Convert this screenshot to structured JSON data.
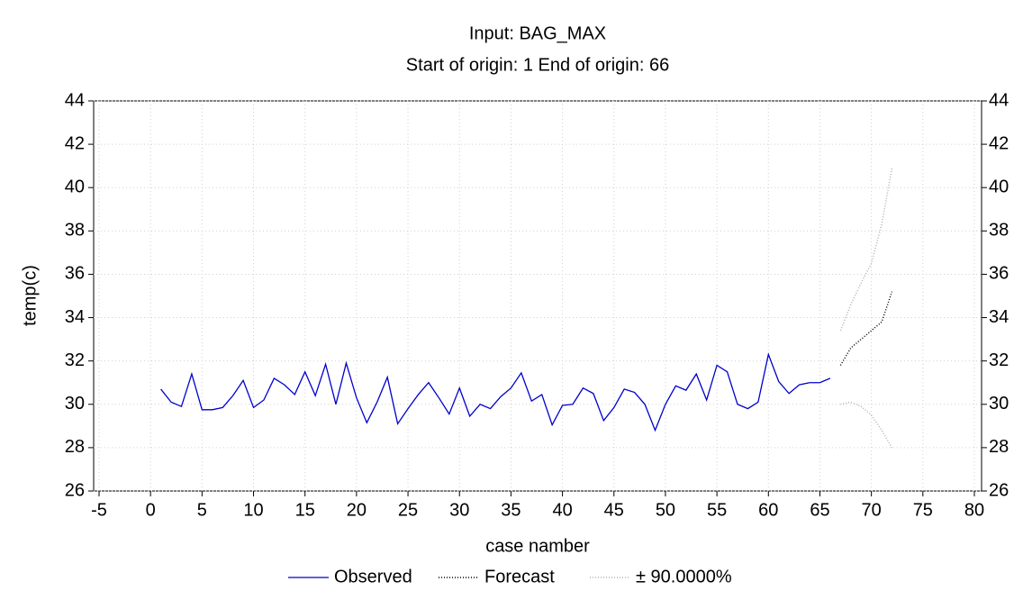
{
  "chart_data": {
    "type": "line",
    "title": "Input: BAG_MAX",
    "subtitle": "Start of origin: 1 End of origin: 66",
    "x_label": "case namber",
    "y_label": "temp(c)",
    "xlim": [
      -5,
      80
    ],
    "xticks": [
      -5,
      0,
      5,
      10,
      15,
      20,
      25,
      30,
      35,
      40,
      45,
      50,
      55,
      60,
      65,
      70,
      75,
      80
    ],
    "ylim": [
      26,
      44
    ],
    "yticks": [
      26,
      28,
      30,
      32,
      34,
      36,
      38,
      40,
      42,
      44
    ],
    "grid": true,
    "legend": "bottom",
    "series": [
      {
        "name": "Observed",
        "color": "#0000cc",
        "style": "solid",
        "x": [
          1,
          2,
          3,
          4,
          5,
          6,
          7,
          8,
          9,
          10,
          11,
          12,
          13,
          14,
          15,
          16,
          17,
          18,
          19,
          20,
          21,
          22,
          23,
          24,
          25,
          26,
          27,
          28,
          29,
          30,
          31,
          32,
          33,
          34,
          35,
          36,
          37,
          38,
          39,
          40,
          41,
          42,
          43,
          44,
          45,
          46,
          47,
          48,
          49,
          50,
          51,
          52,
          53,
          54,
          55,
          56,
          57,
          58,
          59,
          60,
          61,
          62,
          63,
          64,
          65,
          66
        ],
        "values": [
          30.7,
          30.1,
          29.9,
          31.4,
          29.75,
          29.75,
          29.85,
          30.4,
          31.1,
          29.85,
          30.2,
          31.2,
          30.9,
          30.45,
          31.5,
          30.4,
          31.85,
          30.0,
          31.9,
          30.3,
          29.15,
          30.1,
          31.25,
          29.1,
          29.8,
          30.45,
          31.0,
          30.3,
          29.55,
          30.75,
          29.45,
          30.0,
          29.8,
          30.35,
          30.75,
          31.45,
          30.15,
          30.45,
          29.05,
          29.95,
          30.0,
          30.75,
          30.5,
          29.25,
          29.85,
          30.7,
          30.55,
          30.0,
          28.8,
          30.0,
          30.85,
          30.65,
          31.4,
          30.2,
          31.8,
          31.5,
          30.0,
          29.8,
          30.1,
          32.3,
          31.05,
          30.5,
          30.9,
          31.0,
          31.0,
          31.2
        ]
      },
      {
        "name": "Forecast",
        "color": "#000000",
        "style": "dotted",
        "x": [
          67,
          68,
          69,
          70,
          71,
          72
        ],
        "values": [
          31.8,
          32.6,
          33.0,
          33.4,
          33.8,
          35.2
        ]
      },
      {
        "name": "± 90.0000%",
        "color": "#b0b0b0",
        "style": "dotted",
        "x": [
          67,
          68,
          69,
          70,
          71,
          72
        ],
        "upper": [
          33.4,
          34.6,
          35.6,
          36.5,
          38.3,
          40.9
        ],
        "lower": [
          30.0,
          30.1,
          29.9,
          29.5,
          28.8,
          28.0
        ]
      }
    ]
  }
}
